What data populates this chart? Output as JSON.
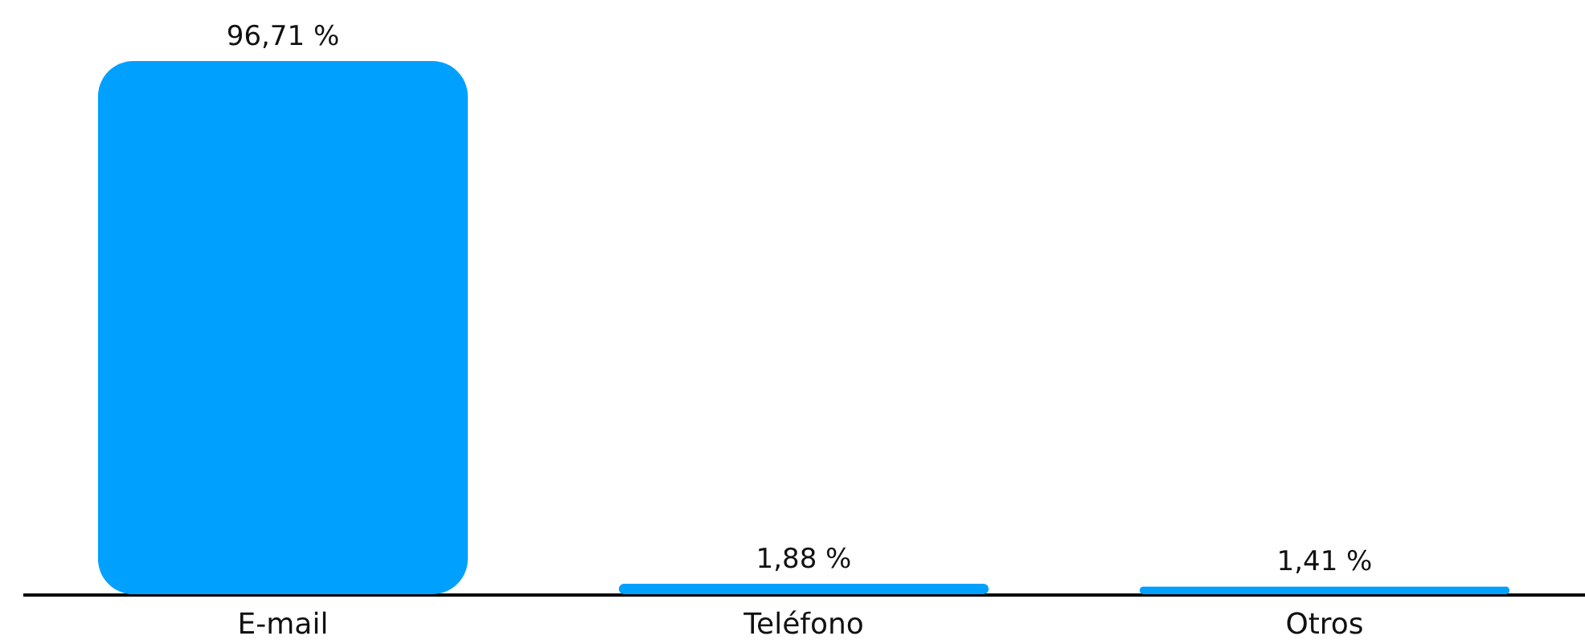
{
  "chart_data": {
    "type": "bar",
    "categories": [
      "E-mail",
      "Teléfono",
      "Otros"
    ],
    "values": [
      96.71,
      1.88,
      1.41
    ],
    "value_labels": [
      "96,71 %",
      "1,88 %",
      "1,41 %"
    ],
    "color": "#00a0ff",
    "grid": false
  }
}
